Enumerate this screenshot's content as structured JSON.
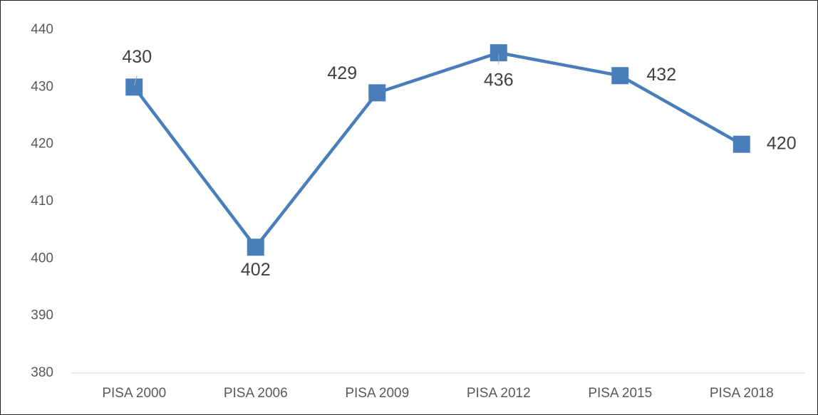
{
  "chart_data": {
    "type": "line",
    "categories": [
      "PISA 2000",
      "PISA 2006",
      "PISA 2009",
      "PISA 2012",
      "PISA 2015",
      "PISA 2018"
    ],
    "series": [
      {
        "color": "#4a7ebb",
        "values": [
          430,
          402,
          429,
          436,
          432,
          420
        ]
      }
    ],
    "ylim": [
      380,
      440
    ],
    "yticks": [
      380,
      390,
      400,
      410,
      420,
      430,
      440
    ],
    "grid": false
  }
}
